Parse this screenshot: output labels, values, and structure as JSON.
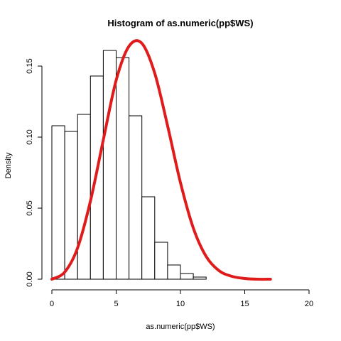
{
  "chart_data": {
    "type": "bar",
    "title": "Histogram of as.numeric(pp$WS)",
    "xlabel": "as.numeric(pp$WS)",
    "ylabel": "Density",
    "xlim": [
      0,
      20
    ],
    "ylim": [
      0,
      0.17
    ],
    "x_ticks": [
      0,
      5,
      10,
      15,
      20
    ],
    "y_ticks": [
      0.0,
      0.05,
      0.1,
      0.15
    ],
    "x_tick_labels": [
      "0",
      "5",
      "10",
      "15",
      "20"
    ],
    "y_tick_labels": [
      "0.00",
      "0.05",
      "0.10",
      "0.15"
    ],
    "bins": [
      {
        "x0": 0,
        "x1": 1,
        "density": 0.108
      },
      {
        "x0": 1,
        "x1": 2,
        "density": 0.104
      },
      {
        "x0": 2,
        "x1": 3,
        "density": 0.116
      },
      {
        "x0": 3,
        "x1": 4,
        "density": 0.143
      },
      {
        "x0": 4,
        "x1": 5,
        "density": 0.161
      },
      {
        "x0": 5,
        "x1": 6,
        "density": 0.156
      },
      {
        "x0": 6,
        "x1": 7,
        "density": 0.115
      },
      {
        "x0": 7,
        "x1": 8,
        "density": 0.058
      },
      {
        "x0": 8,
        "x1": 9,
        "density": 0.026
      },
      {
        "x0": 9,
        "x1": 10,
        "density": 0.01
      },
      {
        "x0": 10,
        "x1": 11,
        "density": 0.004
      },
      {
        "x0": 11,
        "x1": 12,
        "density": 0.0015
      }
    ],
    "curve": {
      "type": "line",
      "color": "#e01b1b",
      "points": [
        [
          0,
          0
        ],
        [
          1,
          0.005
        ],
        [
          2,
          0.022
        ],
        [
          3,
          0.055
        ],
        [
          4,
          0.098
        ],
        [
          5,
          0.14
        ],
        [
          6,
          0.164
        ],
        [
          7,
          0.166
        ],
        [
          8,
          0.145
        ],
        [
          9,
          0.108
        ],
        [
          10,
          0.068
        ],
        [
          11,
          0.036
        ],
        [
          12,
          0.016
        ],
        [
          13,
          0.006
        ],
        [
          14,
          0.002
        ],
        [
          15,
          0.0005
        ],
        [
          16,
          0
        ],
        [
          17,
          0
        ]
      ]
    },
    "grid": false
  }
}
